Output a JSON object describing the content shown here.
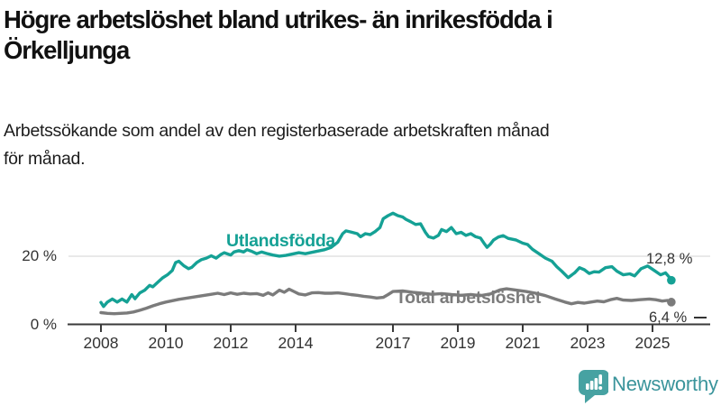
{
  "header": {
    "title_line1": "Högre arbetslöshet bland utrikes- än inrikesfödda i",
    "title_line2": "Örkelljunga",
    "subtitle_line1": "Arbetssökande som andel av den registerbaserade arbetskraften månad",
    "subtitle_line2": "för månad."
  },
  "chart_data": {
    "type": "line",
    "title": "Högre arbetslöshet bland utrikes- än inrikesfödda i Örkelljunga",
    "subtitle": "Arbetssökande som andel av den registerbaserade arbetskraften månad för månad.",
    "ylabel": "",
    "xlabel": "",
    "ylim": [
      0,
      34
    ],
    "xlim": [
      2008,
      2025.7
    ],
    "grid": "single horizontal gridline at 20 %",
    "legend_position": "inline labels on lines",
    "grid_color": "#dcdcdc",
    "axis_color": "#3a3a3a",
    "tick_label_color": "#333333",
    "yticks": [
      {
        "value": 0,
        "label": "0 %",
        "grid": false
      },
      {
        "value": 20,
        "label": "20 %",
        "grid": true
      }
    ],
    "xticks": [
      2008,
      2010,
      2012,
      2014,
      2017,
      2019,
      2021,
      2023,
      2025
    ],
    "series": [
      {
        "id": "utlandsfodda",
        "name": "Utlandsfödda",
        "color": "#15a195",
        "end_label": "12,8 %",
        "end_value": 12.8,
        "x": [
          2008.0,
          2008.08,
          2008.2,
          2008.35,
          2008.5,
          2008.65,
          2008.8,
          2008.95,
          2009.05,
          2009.2,
          2009.35,
          2009.5,
          2009.6,
          2009.75,
          2009.9,
          2010.05,
          2010.2,
          2010.3,
          2010.4,
          2010.55,
          2010.7,
          2010.8,
          2010.95,
          2011.1,
          2011.25,
          2011.4,
          2011.55,
          2011.7,
          2011.8,
          2012.0,
          2012.1,
          2012.25,
          2012.4,
          2012.5,
          2012.65,
          2012.8,
          2012.95,
          2013.1,
          2013.3,
          2013.5,
          2013.7,
          2013.9,
          2014.1,
          2014.3,
          2014.5,
          2014.7,
          2014.9,
          2015.1,
          2015.3,
          2015.45,
          2015.55,
          2015.7,
          2015.9,
          2016.0,
          2016.15,
          2016.3,
          2016.45,
          2016.6,
          2016.7,
          2016.85,
          2017.0,
          2017.15,
          2017.3,
          2017.4,
          2017.55,
          2017.7,
          2017.85,
          2018.0,
          2018.1,
          2018.25,
          2018.4,
          2018.5,
          2018.65,
          2018.8,
          2018.95,
          2019.1,
          2019.25,
          2019.4,
          2019.55,
          2019.7,
          2019.8,
          2019.9,
          2020.0,
          2020.1,
          2020.25,
          2020.4,
          2020.55,
          2020.8,
          2021.0,
          2021.15,
          2021.3,
          2021.5,
          2021.7,
          2021.9,
          2022.05,
          2022.2,
          2022.4,
          2022.6,
          2022.75,
          2022.9,
          2023.05,
          2023.2,
          2023.35,
          2023.55,
          2023.75,
          2023.9,
          2024.1,
          2024.3,
          2024.45,
          2024.65,
          2024.85,
          2025.05,
          2025.25,
          2025.4,
          2025.5,
          2025.58
        ],
        "values": [
          6.3,
          5.1,
          6.4,
          7.3,
          6.4,
          7.3,
          6.4,
          8.6,
          7.4,
          9.1,
          9.9,
          11.3,
          10.9,
          12.2,
          13.5,
          14.4,
          15.7,
          18.0,
          18.4,
          17.1,
          16.2,
          16.6,
          18.0,
          18.9,
          19.3,
          20.0,
          19.3,
          20.4,
          20.9,
          20.2,
          21.1,
          21.5,
          21.1,
          21.8,
          21.3,
          20.6,
          21.1,
          20.7,
          20.2,
          19.9,
          20.1,
          20.5,
          20.9,
          20.6,
          21.0,
          21.4,
          21.8,
          22.5,
          24.0,
          26.5,
          27.3,
          27.0,
          26.5,
          25.6,
          26.5,
          26.2,
          27.1,
          28.3,
          30.9,
          31.8,
          32.5,
          31.8,
          31.4,
          30.7,
          30.0,
          29.2,
          29.4,
          26.9,
          25.6,
          25.2,
          26.0,
          27.7,
          27.1,
          28.3,
          26.5,
          26.9,
          26.0,
          26.5,
          25.6,
          25.2,
          23.8,
          22.5,
          23.4,
          24.6,
          25.5,
          25.9,
          25.1,
          24.6,
          23.7,
          23.3,
          21.9,
          20.6,
          19.3,
          18.4,
          16.8,
          15.5,
          13.6,
          15.0,
          16.5,
          15.9,
          14.8,
          15.3,
          15.2,
          16.5,
          16.8,
          15.5,
          14.4,
          14.7,
          14.1,
          16.2,
          17.0,
          15.7,
          14.4,
          15.0,
          13.9,
          12.8
        ]
      },
      {
        "id": "total",
        "name": "Total arbetslöshet",
        "color": "#7b7b7b",
        "end_label": "6,4 %",
        "end_value": 6.4,
        "x": [
          2008.0,
          2008.2,
          2008.4,
          2008.6,
          2008.8,
          2009.0,
          2009.2,
          2009.4,
          2009.6,
          2009.8,
          2010.0,
          2010.2,
          2010.4,
          2010.6,
          2010.8,
          2011.0,
          2011.2,
          2011.4,
          2011.6,
          2011.8,
          2012.0,
          2012.2,
          2012.4,
          2012.6,
          2012.8,
          2013.0,
          2013.15,
          2013.3,
          2013.5,
          2013.65,
          2013.8,
          2013.95,
          2014.1,
          2014.3,
          2014.5,
          2014.7,
          2014.9,
          2015.1,
          2015.3,
          2015.5,
          2015.7,
          2015.9,
          2016.1,
          2016.3,
          2016.5,
          2016.7,
          2016.85,
          2017.0,
          2017.3,
          2017.6,
          2017.9,
          2018.2,
          2018.5,
          2018.8,
          2019.1,
          2019.4,
          2019.7,
          2020.0,
          2020.3,
          2020.5,
          2020.8,
          2021.1,
          2021.4,
          2021.7,
          2022.0,
          2022.3,
          2022.5,
          2022.7,
          2022.9,
          2023.1,
          2023.3,
          2023.5,
          2023.7,
          2023.9,
          2024.1,
          2024.35,
          2024.6,
          2024.9,
          2025.1,
          2025.3,
          2025.45,
          2025.58
        ],
        "values": [
          3.3,
          3.1,
          3.0,
          3.1,
          3.2,
          3.5,
          4.0,
          4.6,
          5.3,
          5.9,
          6.4,
          6.8,
          7.2,
          7.5,
          7.8,
          8.1,
          8.4,
          8.7,
          9.0,
          8.6,
          9.1,
          8.7,
          9.0,
          8.8,
          8.9,
          8.4,
          9.1,
          8.5,
          9.9,
          9.3,
          10.2,
          9.5,
          8.8,
          8.5,
          9.1,
          9.2,
          9.0,
          9.0,
          9.1,
          8.9,
          8.6,
          8.4,
          8.1,
          7.9,
          7.6,
          7.8,
          8.6,
          9.5,
          9.7,
          9.3,
          9.0,
          8.7,
          8.9,
          8.6,
          8.4,
          8.6,
          8.3,
          8.8,
          10.0,
          10.3,
          9.9,
          9.5,
          9.0,
          8.3,
          7.3,
          6.4,
          5.9,
          6.3,
          6.1,
          6.4,
          6.7,
          6.5,
          7.1,
          7.5,
          7.0,
          6.9,
          7.1,
          7.3,
          7.1,
          6.7,
          6.9,
          6.4
        ]
      }
    ]
  },
  "footer": {
    "brand": "Newsworthy",
    "logo_color": "#47a2a2",
    "brand_text_color": "#3a949b"
  }
}
